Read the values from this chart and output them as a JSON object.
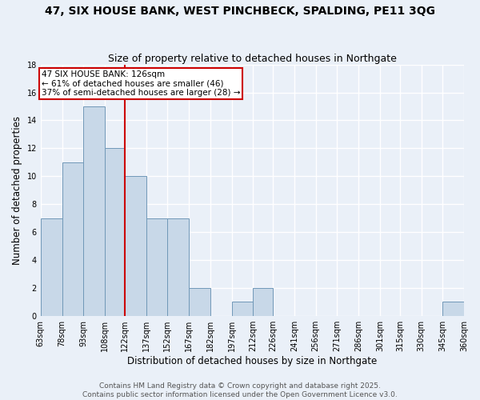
{
  "title": "47, SIX HOUSE BANK, WEST PINCHBECK, SPALDING, PE11 3QG",
  "subtitle": "Size of property relative to detached houses in Northgate",
  "xlabel": "Distribution of detached houses by size in Northgate",
  "ylabel": "Number of detached properties",
  "bins": [
    "63sqm",
    "78sqm",
    "93sqm",
    "108sqm",
    "122sqm",
    "137sqm",
    "152sqm",
    "167sqm",
    "182sqm",
    "197sqm",
    "212sqm",
    "226sqm",
    "241sqm",
    "256sqm",
    "271sqm",
    "286sqm",
    "301sqm",
    "315sqm",
    "330sqm",
    "345sqm",
    "360sqm"
  ],
  "values": [
    7,
    11,
    15,
    12,
    10,
    7,
    7,
    2,
    0,
    1,
    2,
    0,
    0,
    0,
    0,
    0,
    0,
    0,
    0,
    1
  ],
  "bar_color": "#c8d8e8",
  "bar_edge_color": "#7098b8",
  "bin_edges": [
    63,
    78,
    93,
    108,
    122,
    137,
    152,
    167,
    182,
    197,
    212,
    226,
    241,
    256,
    271,
    286,
    301,
    315,
    330,
    345,
    360
  ],
  "annotation_text": "47 SIX HOUSE BANK: 126sqm\n← 61% of detached houses are smaller (46)\n37% of semi-detached houses are larger (28) →",
  "annotation_box_color": "#ffffff",
  "annotation_box_edge_color": "#cc0000",
  "subject_line_color": "#cc0000",
  "ylim": [
    0,
    18
  ],
  "yticks": [
    0,
    2,
    4,
    6,
    8,
    10,
    12,
    14,
    16,
    18
  ],
  "footer_line1": "Contains HM Land Registry data © Crown copyright and database right 2025.",
  "footer_line2": "Contains public sector information licensed under the Open Government Licence v3.0.",
  "bg_color": "#eaf0f8",
  "grid_color": "#ffffff",
  "title_fontsize": 10,
  "subtitle_fontsize": 9,
  "axis_label_fontsize": 8.5,
  "tick_fontsize": 7,
  "footer_fontsize": 6.5,
  "annotation_fontsize": 7.5
}
